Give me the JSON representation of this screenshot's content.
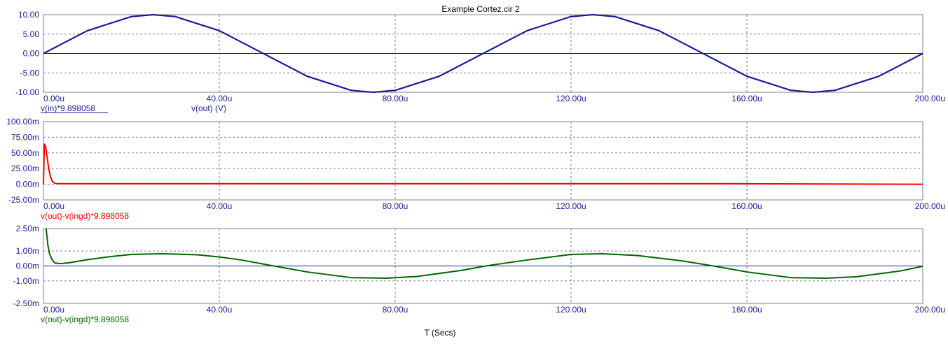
{
  "title": "Example Cortez.cir 2",
  "xlabel": "T (Secs)",
  "colors": {
    "axis_text": "#1a1a99",
    "frame": "#808080",
    "grid": "#808080",
    "zero_line": "#1a1a99",
    "panel1": "#1a1a99",
    "panel2": "#ff0000",
    "panel3": "#006600"
  },
  "chart_data": [
    {
      "type": "line",
      "xlim": [
        0,
        200
      ],
      "ylim": [
        -10,
        10
      ],
      "x_ticks": [
        "0.00u",
        "40.00u",
        "80.00u",
        "120.00u",
        "160.00u",
        "200.00u"
      ],
      "y_ticks": [
        "10.00",
        "5.00",
        "0.00",
        "-5.00",
        "-10.00"
      ],
      "labels": [
        "v(in)*9.898058",
        "v(out) (V)"
      ],
      "series": [
        {
          "name": "v(in)*9.898058",
          "x": [
            0,
            10,
            20,
            25,
            30,
            40,
            50,
            60,
            70,
            75,
            80,
            90,
            100,
            110,
            120,
            125,
            130,
            140,
            150,
            160,
            170,
            175,
            180,
            190,
            200
          ],
          "y": [
            0,
            5.88,
            9.51,
            10,
            9.51,
            5.88,
            0,
            -5.88,
            -9.51,
            -10,
            -9.51,
            -5.88,
            0,
            5.88,
            9.51,
            10,
            9.51,
            5.88,
            0,
            -5.88,
            -9.51,
            -10,
            -9.51,
            -5.88,
            0
          ]
        },
        {
          "name": "v(out) (V)",
          "x": [
            0,
            10,
            20,
            25,
            30,
            40,
            50,
            60,
            70,
            75,
            80,
            90,
            100,
            110,
            120,
            125,
            130,
            140,
            150,
            160,
            170,
            175,
            180,
            190,
            200
          ],
          "y": [
            0,
            5.88,
            9.51,
            10,
            9.51,
            5.88,
            0,
            -5.88,
            -9.51,
            -10,
            -9.51,
            -5.88,
            0,
            5.88,
            9.51,
            10,
            9.51,
            5.88,
            0,
            -5.88,
            -9.51,
            -10,
            -9.51,
            -5.88,
            0
          ]
        }
      ]
    },
    {
      "type": "line",
      "xlim": [
        0,
        200
      ],
      "ylim": [
        -25,
        100
      ],
      "x_ticks": [
        "0.00u",
        "40.00u",
        "80.00u",
        "120.00u",
        "160.00u",
        "200.00u"
      ],
      "y_ticks": [
        "100.00m",
        "75.00m",
        "50.00m",
        "25.00m",
        "0.00m",
        "-25.00m"
      ],
      "labels": [
        "v(out)-v(ingd)*9.898058"
      ],
      "series": [
        {
          "name": "v(out)-v(ingd)*9.898058",
          "x": [
            0,
            0.2,
            0.5,
            0.8,
            1.2,
            1.6,
            2,
            2.5,
            3,
            5,
            50,
            100,
            150,
            200
          ],
          "y": [
            0,
            64,
            60,
            45,
            25,
            12,
            5,
            2,
            1,
            1,
            1,
            1,
            1,
            0
          ]
        }
      ]
    },
    {
      "type": "line",
      "xlim": [
        0,
        200
      ],
      "ylim": [
        -2.5,
        2.5
      ],
      "x_ticks": [
        "0.00u",
        "40.00u",
        "80.00u",
        "120.00u",
        "160.00u",
        "200.00u"
      ],
      "y_ticks": [
        "2.50m",
        "1.00m",
        "0.00m",
        "-1.00m",
        "-2.50m"
      ],
      "labels": [
        "v(out)-v(ingd)*9.898058"
      ],
      "series": [
        {
          "name": "v(out)-v(ingd)*9.898058",
          "x": [
            0.6,
            0.8,
            1,
            1.4,
            2,
            2.6,
            4,
            6,
            10,
            15,
            20,
            27,
            35,
            40,
            45,
            52,
            60,
            70,
            78,
            85,
            95,
            101,
            110,
            120,
            127,
            135,
            145,
            152,
            160,
            170,
            178,
            185,
            195,
            200
          ],
          "y": [
            2.5,
            2.0,
            1.4,
            0.8,
            0.4,
            0.2,
            0.16,
            0.22,
            0.42,
            0.62,
            0.77,
            0.82,
            0.75,
            0.6,
            0.4,
            0.02,
            -0.4,
            -0.78,
            -0.82,
            -0.7,
            -0.3,
            0.02,
            0.4,
            0.77,
            0.82,
            0.7,
            0.35,
            0.02,
            -0.4,
            -0.78,
            -0.82,
            -0.72,
            -0.33,
            -0.02
          ]
        }
      ]
    }
  ]
}
